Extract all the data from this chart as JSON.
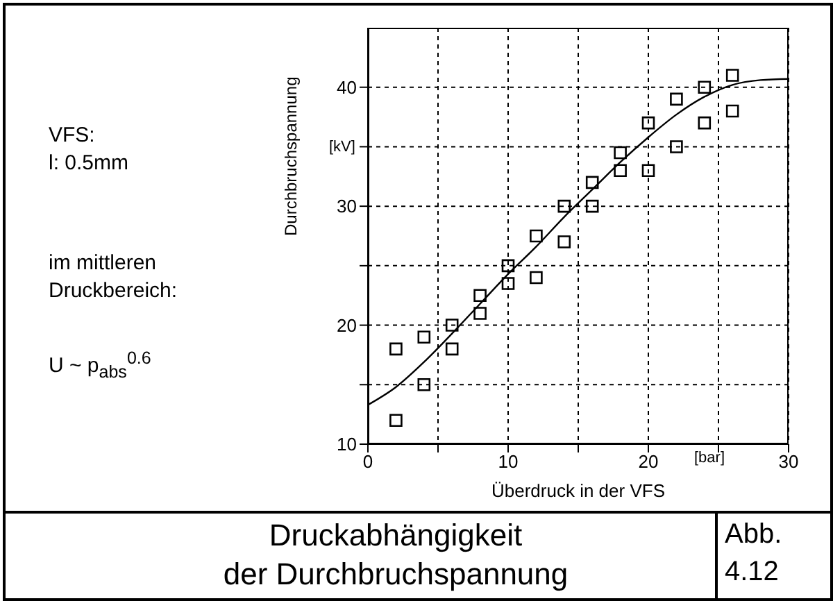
{
  "chart_data": {
    "type": "scatter",
    "title": "Druckabhängigkeit\nder Durchbruchspannung",
    "xlabel": "Überdruck in der VFS",
    "ylabel": "Durchbruchspannung",
    "annotations": [
      "[kV]",
      "[bar]",
      "VFS:\nl: 0.5mm",
      "im mittleren\nDruckbereich:",
      "U ~ p$_{abs}$$^{0.6}$",
      "Abb.\n4.12"
    ],
    "xlim": [
      0,
      30
    ],
    "xticks": [
      0,
      {
        "value": 5,
        "label": null
      },
      10,
      {
        "value": 15,
        "label": null
      },
      20,
      {
        "value": 25,
        "label": null
      },
      30
    ],
    "ylim": [
      10,
      45
    ],
    "yticks": [
      10,
      {
        "value": 15,
        "label": null
      },
      20,
      {
        "value": 25,
        "label": null
      },
      30,
      {
        "value": 35,
        "label": null
      },
      40
    ],
    "grid": true,
    "marker": "square",
    "series": [
      {
        "color": "#000000",
        "x": [
          2,
          2,
          4,
          4,
          6,
          6,
          8,
          8,
          10,
          10,
          12,
          12,
          14,
          14,
          16,
          16,
          18,
          18,
          20,
          20,
          22,
          22,
          24,
          24,
          26,
          26
        ],
        "values": [
          18,
          12,
          19,
          15,
          20,
          18,
          22.5,
          21,
          25,
          23.5,
          27.5,
          24,
          30,
          27,
          32,
          30,
          34.5,
          33,
          37,
          33,
          39,
          35,
          40,
          37,
          41,
          38
        ]
      },
      {
        "type": "line",
        "color": "#000000",
        "marker": "none",
        "line_style": "solid",
        "x": [
          0,
          2,
          4,
          6,
          8,
          10,
          12,
          14,
          16,
          18,
          20,
          22,
          24,
          26,
          28,
          30
        ],
        "values": [
          13.3,
          14.8,
          16.9,
          19.3,
          21.8,
          24.3,
          26.6,
          29.1,
          31.4,
          33.7,
          35.8,
          37.7,
          39.2,
          40.2,
          40.6,
          40.7
        ]
      }
    ]
  }
}
